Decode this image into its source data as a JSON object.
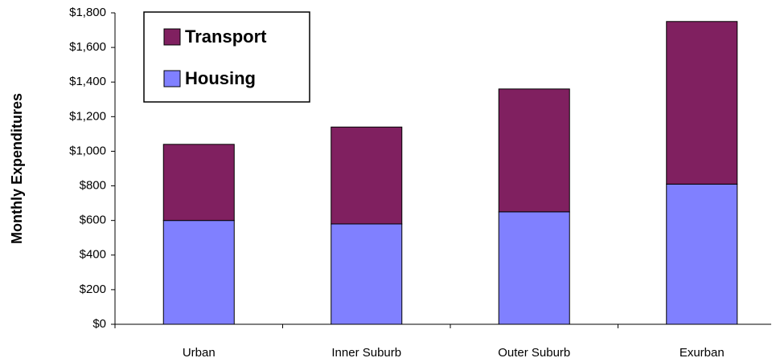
{
  "chart_data": {
    "type": "stacked_bar",
    "ylabel": "Monthly Expenditures",
    "categories": [
      "Urban",
      "Inner Suburb",
      "Outer Suburb",
      "Exurban"
    ],
    "series": [
      {
        "name": "Housing",
        "color": "#8080ff",
        "values": [
          600,
          580,
          650,
          810
        ]
      },
      {
        "name": "Transport",
        "color": "#802060",
        "values": [
          440,
          560,
          710,
          940
        ]
      }
    ],
    "ylim": [
      0,
      1800
    ],
    "yticks": [
      {
        "value": 0,
        "label": "$0"
      },
      {
        "value": 200,
        "label": "$200"
      },
      {
        "value": 400,
        "label": "$400"
      },
      {
        "value": 600,
        "label": "$600"
      },
      {
        "value": 800,
        "label": "$800"
      },
      {
        "value": 1000,
        "label": "$1,000"
      },
      {
        "value": 1200,
        "label": "$1,200"
      },
      {
        "value": 1400,
        "label": "$1,400"
      },
      {
        "value": 1600,
        "label": "$1,600"
      },
      {
        "value": 1800,
        "label": "$1,800"
      }
    ],
    "legend": "upper left"
  }
}
